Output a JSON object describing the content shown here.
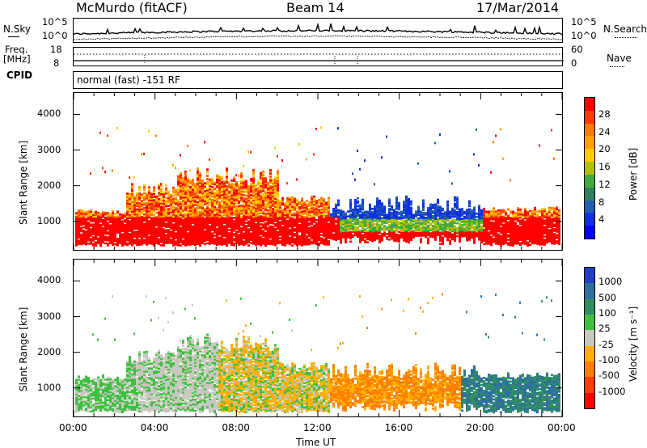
{
  "header": {
    "radar": "McMurdo (fitACF)",
    "beam": "Beam 14",
    "date": "17/Mar/2014"
  },
  "noise_panel": {
    "left_label": "N.Sky",
    "right_label": "N.Search",
    "left_ticks": [
      "10^5",
      "10^0"
    ],
    "right_ticks": [
      "10^5",
      "10^0"
    ]
  },
  "freq_panel": {
    "left_label_1": "Freq.",
    "left_label_2": "[MHz]",
    "left_ticks": [
      "18",
      "8"
    ],
    "right_ticks": [
      "60",
      "0"
    ],
    "right_label": "Nave"
  },
  "cpid": {
    "label": "CPID",
    "text": "normal (fast) -151 RF"
  },
  "chart_data": [
    {
      "type": "heatmap",
      "name": "power",
      "ylabel": "Slant Range [km]",
      "yticks": [
        1000,
        2000,
        3000,
        4000
      ],
      "ylim": [
        200,
        4600
      ],
      "xlim_hours": [
        0,
        24
      ],
      "colorbar": {
        "label": "Power [dB]",
        "tick_labels": [
          "28",
          "24",
          "20",
          "16",
          "12",
          "8",
          "4"
        ],
        "colors": [
          "#ff0000",
          "#ff3a00",
          "#ff7a00",
          "#ffa000",
          "#ffcc00",
          "#b0c000",
          "#3faa3f",
          "#2f7f5f",
          "#1f5faf",
          "#1030e0",
          "#0000ff"
        ]
      }
    },
    {
      "type": "heatmap",
      "name": "velocity",
      "ylabel": "Slant Range [km]",
      "yticks": [
        1000,
        2000,
        3000,
        4000
      ],
      "ylim": [
        200,
        4600
      ],
      "xlim_hours": [
        0,
        24
      ],
      "colorbar": {
        "label": "Velocity [m s⁻¹]",
        "tick_labels": [
          "1000",
          "500",
          "100",
          "25",
          "-25",
          "-100",
          "-500",
          "-1000"
        ],
        "colors": [
          "#1f3fc0",
          "#2f6fa0",
          "#2f8f5f",
          "#3fbf3f",
          "#c8c8c0",
          "#ffb000",
          "#ff7f00",
          "#ff3f00",
          "#ff0000"
        ]
      }
    }
  ],
  "time_axis": {
    "ticks": [
      "00:00",
      "04:00",
      "08:00",
      "12:00",
      "16:00",
      "20:00",
      "00:00"
    ],
    "label": "Time UT"
  }
}
